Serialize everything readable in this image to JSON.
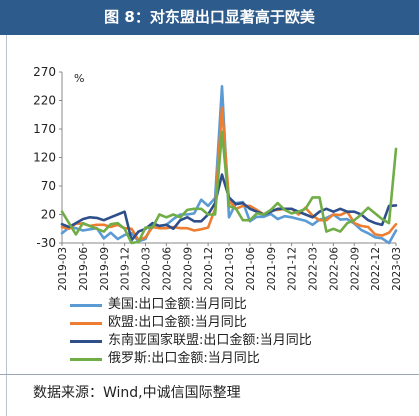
{
  "figure": {
    "title": "图 8：对东盟出口显著高于欧美",
    "source": "数据来源：Wind,中诚信国际整理"
  },
  "chart_data": {
    "type": "line",
    "unit_label": "%",
    "ylim": [
      -30,
      270
    ],
    "yticks": [
      "270",
      "220",
      "170",
      "120",
      "70",
      "20",
      "-30"
    ],
    "ytick_values": [
      270,
      220,
      170,
      120,
      70,
      20,
      -30
    ],
    "x": [
      "2019-03",
      "2019-04",
      "2019-05",
      "2019-06",
      "2019-07",
      "2019-08",
      "2019-09",
      "2019-10",
      "2019-11",
      "2019-12",
      "2020-01",
      "2020-02",
      "2020-03",
      "2020-04",
      "2020-05",
      "2020-06",
      "2020-07",
      "2020-08",
      "2020-09",
      "2020-10",
      "2020-11",
      "2020-12",
      "2021-01",
      "2021-02",
      "2021-03",
      "2021-04",
      "2021-05",
      "2021-06",
      "2021-07",
      "2021-08",
      "2021-09",
      "2021-10",
      "2021-11",
      "2021-12",
      "2022-01",
      "2022-02",
      "2022-03",
      "2022-04",
      "2022-05",
      "2022-06",
      "2022-07",
      "2022-08",
      "2022-09",
      "2022-10",
      "2022-11",
      "2022-12",
      "2023-01",
      "2023-02",
      "2023-03"
    ],
    "xtick_labels": [
      "2019-03",
      "2019-06",
      "2019-09",
      "2019-12",
      "2020-03",
      "2020-06",
      "2020-09",
      "2020-12",
      "2021-03",
      "2021-06",
      "2021-09",
      "2021-12",
      "2022-03",
      "2022-06",
      "2022-09",
      "2022-12",
      "2023-03"
    ],
    "series": [
      {
        "name": "美国:出口金额:当月同比",
        "color": "#5b9bd5",
        "values": [
          -13,
          -3,
          -4,
          -8,
          -6,
          -4,
          -22,
          -12,
          -23,
          -16,
          -13,
          -27,
          -23,
          3,
          0,
          2,
          12,
          20,
          20,
          22,
          46,
          35,
          49,
          245,
          15,
          40,
          42,
          8,
          16,
          16,
          21,
          12,
          17,
          15,
          12,
          9,
          2,
          11,
          14,
          20,
          11,
          12,
          4,
          -7,
          -13,
          -20,
          -22,
          -30,
          -8
        ]
      },
      {
        "name": "欧盟:出口金额:当月同比",
        "color": "#ed7d31",
        "values": [
          -2,
          -5,
          4,
          4,
          0,
          2,
          2,
          -2,
          2,
          -4,
          -5,
          -25,
          -20,
          -2,
          -4,
          -4,
          -2,
          -4,
          -4,
          -8,
          -6,
          -3,
          30,
          207,
          45,
          30,
          35,
          35,
          28,
          20,
          28,
          28,
          30,
          30,
          20,
          32,
          18,
          10,
          10,
          20,
          19,
          25,
          5,
          0,
          -2,
          -15,
          -17,
          -12,
          3
        ]
      },
      {
        "name": "东南亚国家联盟:出口金额:当月同比",
        "color": "#2e4f8a",
        "values": [
          3,
          -2,
          5,
          12,
          15,
          14,
          10,
          15,
          20,
          25,
          -25,
          -10,
          -5,
          5,
          0,
          2,
          -5,
          10,
          15,
          8,
          8,
          20,
          40,
          90,
          50,
          38,
          40,
          30,
          25,
          20,
          25,
          30,
          30,
          30,
          25,
          20,
          15,
          25,
          30,
          25,
          30,
          25,
          25,
          20,
          10,
          5,
          2,
          35,
          36
        ]
      },
      {
        "name": "俄罗斯:出口金额:当月同比",
        "color": "#70ad47",
        "values": [
          25,
          5,
          -15,
          5,
          0,
          -5,
          -10,
          3,
          5,
          -5,
          -30,
          -28,
          -3,
          -3,
          20,
          15,
          20,
          15,
          28,
          30,
          30,
          20,
          20,
          165,
          35,
          30,
          10,
          10,
          22,
          20,
          28,
          40,
          28,
          22,
          25,
          30,
          50,
          50,
          -10,
          -5,
          -10,
          5,
          10,
          20,
          32,
          22,
          12,
          5,
          135
        ]
      }
    ]
  }
}
